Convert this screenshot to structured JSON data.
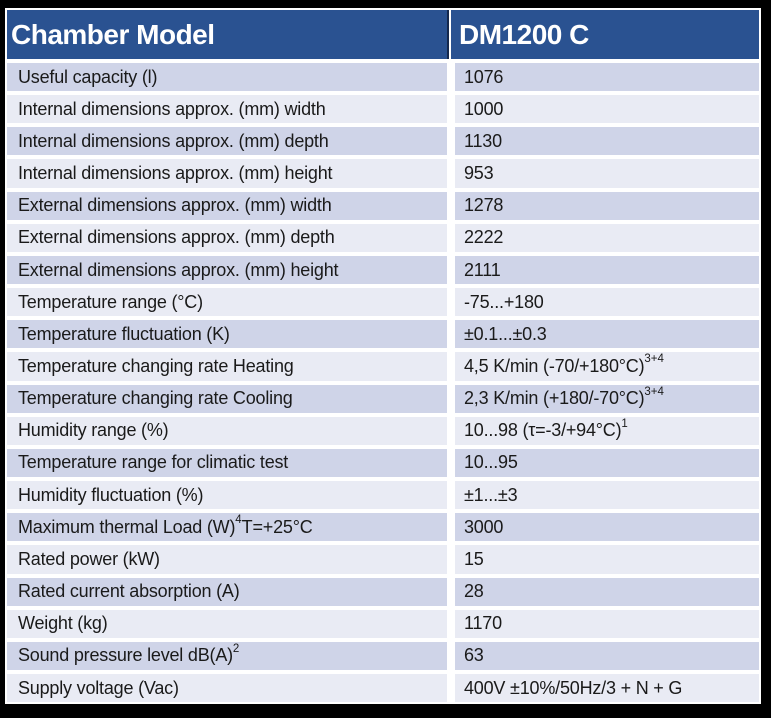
{
  "colors": {
    "frame": "#000000",
    "grid_white": "#FFFFFF",
    "header_bg": "#2A5291",
    "header_text": "#FFFFFF",
    "header_divider": "#14284D",
    "row_dark": "#CFD4E8",
    "row_light": "#E9EBF4",
    "text": "#1A1A1A"
  },
  "table": {
    "header": {
      "model_label": "Chamber Model",
      "model_value": "DM1200 C"
    },
    "rows": [
      {
        "label": "Useful capacity (l)",
        "value": "1076"
      },
      {
        "label": "Internal dimensions approx. (mm) width",
        "value": "1000"
      },
      {
        "label": "Internal dimensions approx. (mm) depth",
        "value": "1130"
      },
      {
        "label": "Internal dimensions approx. (mm) height",
        "value": "953"
      },
      {
        "label": "External dimensions approx. (mm) width",
        "value": "1278"
      },
      {
        "label": "External dimensions approx. (mm) depth",
        "value": "2222"
      },
      {
        "label": "External dimensions approx. (mm) height",
        "value": "2111"
      },
      {
        "label": "Temperature range (°C)",
        "value": "-75...+180"
      },
      {
        "label": "Temperature fluctuation (K)",
        "value": "±0.1...±0.3"
      },
      {
        "label": "Temperature changing rate Heating",
        "value": "4,5 K/min (-70/+180°C) ^{3+4}"
      },
      {
        "label": "Temperature changing rate Cooling",
        "value": "2,3 K/min (+180/-70°C) ^{3+4}"
      },
      {
        "label": "Humidity range (%)",
        "value": "10...98 (τ=-3/+94°C) ^{1}"
      },
      {
        "label": "Temperature range for climatic test",
        "value": "10...95"
      },
      {
        "label": "Humidity fluctuation (%)",
        "value": "±1...±3"
      },
      {
        "label": "Maximum thermal Load (W)^{4} T=+25°C",
        "value": "3000"
      },
      {
        "label": "Rated power (kW)",
        "value": "15"
      },
      {
        "label": "Rated current absorption (A)",
        "value": "28"
      },
      {
        "label": "Weight (kg)",
        "value": "1170"
      },
      {
        "label": "Sound pressure level dB(A)^{2}",
        "value": "63"
      },
      {
        "label": "Supply voltage (Vac)",
        "value": "400V ±10%/50Hz/3 + N + G"
      }
    ]
  }
}
